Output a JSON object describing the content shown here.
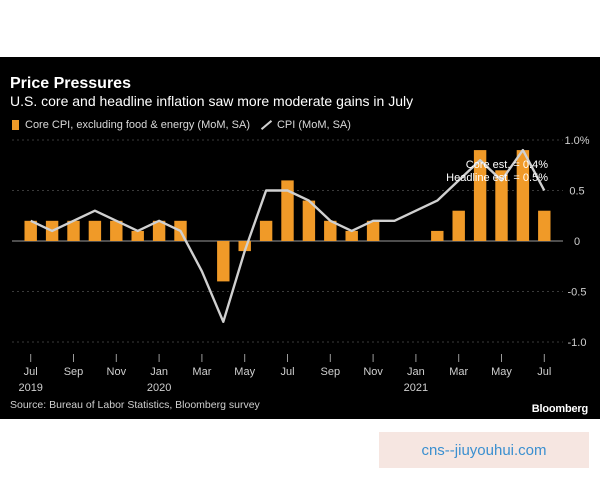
{
  "header": {
    "title": "Price Pressures",
    "subtitle": "U.S. core and headline inflation saw more moderate gains in July"
  },
  "legend": {
    "core_label": "Core CPI, excluding food & energy (MoM, SA)",
    "cpi_label": "CPI (MoM, SA)"
  },
  "footer": {
    "source": "Source: Bureau of Labor Statistics, Bloomberg survey",
    "brand": "Bloomberg"
  },
  "watermark": "cns--jiuyouhui.com",
  "colors": {
    "background": "#000000",
    "bars": "#f09a28",
    "line": "#d0d0d0",
    "text": "#ffffff",
    "axis_text": "#cfcfcf"
  },
  "chart_data": {
    "type": "bar",
    "categories": [
      "2019-07",
      "2019-08",
      "2019-09",
      "2019-10",
      "2019-11",
      "2019-12",
      "2020-01",
      "2020-02",
      "2020-03",
      "2020-04",
      "2020-05",
      "2020-06",
      "2020-07",
      "2020-08",
      "2020-09",
      "2020-10",
      "2020-11",
      "2020-12",
      "2021-01",
      "2021-02",
      "2021-03",
      "2021-04",
      "2021-05",
      "2021-06",
      "2021-07"
    ],
    "x_tick_labels": [
      {
        "label": "Jul",
        "year": "2019",
        "month": "2019-07"
      },
      {
        "label": "Sep",
        "year": "",
        "month": "2019-09"
      },
      {
        "label": "Nov",
        "year": "",
        "month": "2019-11"
      },
      {
        "label": "Jan",
        "year": "2020",
        "month": "2020-01"
      },
      {
        "label": "Mar",
        "year": "",
        "month": "2020-03"
      },
      {
        "label": "May",
        "year": "",
        "month": "2020-05"
      },
      {
        "label": "Jul",
        "year": "",
        "month": "2020-07"
      },
      {
        "label": "Sep",
        "year": "",
        "month": "2020-09"
      },
      {
        "label": "Nov",
        "year": "",
        "month": "2020-11"
      },
      {
        "label": "Jan",
        "year": "2021",
        "month": "2021-01"
      },
      {
        "label": "Mar",
        "year": "",
        "month": "2021-03"
      },
      {
        "label": "May",
        "year": "",
        "month": "2021-05"
      },
      {
        "label": "Jul",
        "year": "",
        "month": "2021-07"
      }
    ],
    "series": [
      {
        "name": "Core CPI, excluding food & energy (MoM, SA)",
        "type": "bar",
        "values": [
          0.2,
          0.2,
          0.2,
          0.2,
          0.2,
          0.1,
          0.2,
          0.2,
          null,
          -0.4,
          -0.1,
          0.2,
          0.6,
          0.4,
          0.2,
          0.1,
          0.2,
          null,
          null,
          0.1,
          0.3,
          0.9,
          0.7,
          0.9,
          0.3
        ]
      },
      {
        "name": "CPI (MoM, SA)",
        "type": "line",
        "values": [
          0.2,
          0.1,
          0.2,
          0.3,
          0.2,
          0.1,
          0.2,
          0.1,
          -0.3,
          -0.8,
          -0.1,
          0.5,
          0.5,
          0.4,
          0.2,
          0.1,
          0.2,
          0.2,
          0.3,
          0.4,
          0.6,
          0.8,
          0.6,
          0.9,
          0.5
        ]
      }
    ],
    "y_ticks": [
      {
        "value": 1.0,
        "label": "1.0%"
      },
      {
        "value": 0.5,
        "label": "0.5"
      },
      {
        "value": 0.0,
        "label": "0"
      },
      {
        "value": -0.5,
        "label": "-0.5"
      },
      {
        "value": -1.0,
        "label": "-1.0"
      }
    ],
    "ylim": [
      -1.0,
      1.0
    ],
    "annotations": [
      "Core est. = 0.4%",
      "Headline est. = 0.5%"
    ],
    "grid": true,
    "legend_position": "top-left"
  }
}
